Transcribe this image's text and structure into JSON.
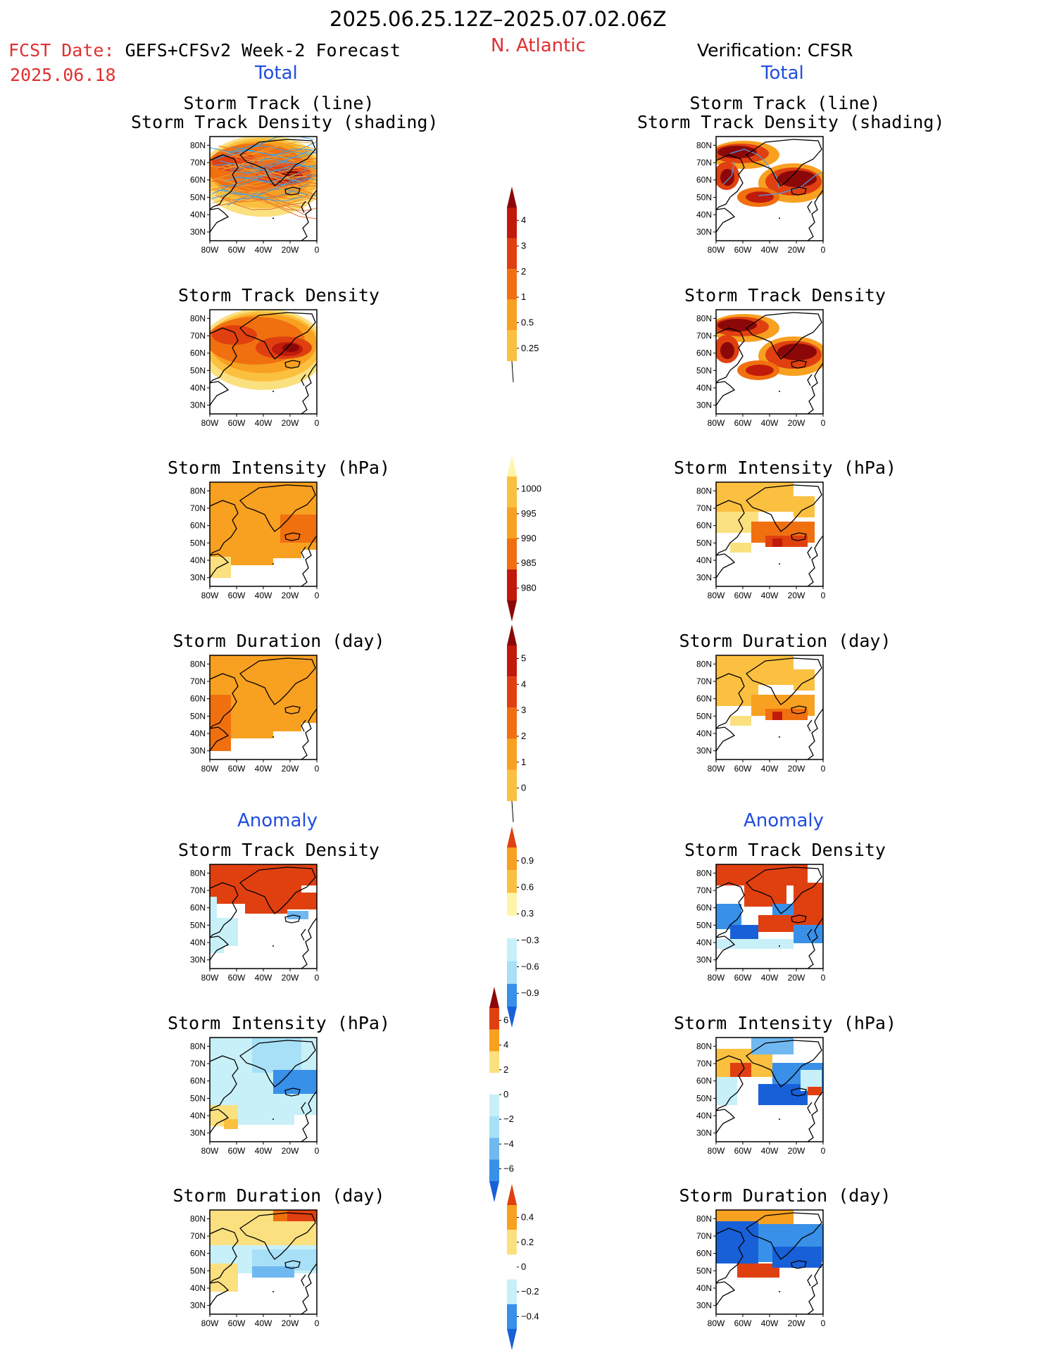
{
  "header": {
    "period": "2025.06.25.12Z–2025.07.02.06Z",
    "fcst_prefix": "FCST Date:",
    "fcst_title": "GEFS+CFSv2 Week-2 Forecast",
    "fcst_date": "2025.06.18",
    "region": "N. Atlantic",
    "verification": "Verification: CFSR"
  },
  "sections": {
    "total_left": "Total",
    "total_right": "Total",
    "anomaly_left": "Anomaly",
    "anomaly_right": "Anomaly"
  },
  "titles": {
    "track_line": "Storm Track (line)",
    "track_shade": "Storm Track Density (shading)",
    "density": "Storm Track Density",
    "intensity": "Storm Intensity (hPa)",
    "duration": "Storm Duration (day)"
  },
  "axes": {
    "lat_ticks": [
      "80N",
      "70N",
      "60N",
      "50N",
      "40N",
      "30N"
    ],
    "lon_ticks": [
      "80W",
      "60W",
      "40W",
      "20W",
      "0"
    ]
  },
  "colorbars": {
    "density_total": [
      "4",
      "3",
      "2",
      "1",
      "0.5",
      "0.25"
    ],
    "intensity_total": [
      "1000",
      "995",
      "990",
      "985",
      "980"
    ],
    "duration_total": [
      "5",
      "4",
      "3",
      "2",
      "1",
      "0"
    ],
    "density_anom": [
      "0.9",
      "0.6",
      "0.3",
      "−0.3",
      "−0.6",
      "−0.9"
    ],
    "intensity_anom": [
      "6",
      "4",
      "2",
      "0",
      "−2",
      "−4",
      "−6"
    ],
    "duration_anom": [
      "0.4",
      "0.2",
      "0",
      "−0.2",
      "−0.4"
    ]
  },
  "colors": {
    "title_red": "#e03030",
    "label_blue": "#1f4de0",
    "warm": [
      "#fff9b0",
      "#fbe080",
      "#fbc040",
      "#f8a020",
      "#f07010",
      "#e04010",
      "#c01a0a",
      "#8c0808"
    ],
    "cool": [
      "#c8f0f8",
      "#a8e0f8",
      "#70b8f0",
      "#3890e8",
      "#1860d8"
    ]
  }
}
